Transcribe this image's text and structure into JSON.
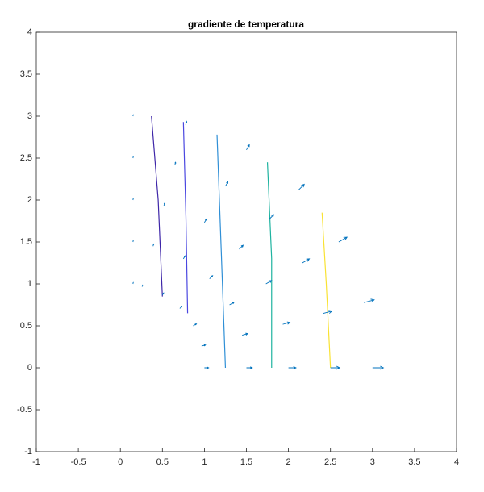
{
  "chart_data": {
    "type": "quiver",
    "title": "gradiente de temperatura",
    "xlim": [
      -1,
      4
    ],
    "ylim": [
      -1,
      4
    ],
    "xticks": [
      -1,
      -0.5,
      0,
      0.5,
      1,
      1.5,
      2,
      2.5,
      3,
      3.5,
      4
    ],
    "yticks": [
      -1,
      -0.5,
      0,
      0.5,
      1,
      1.5,
      2,
      2.5,
      3,
      3.5,
      4
    ],
    "arrows": {
      "color": "#0072bd",
      "x": [
        1,
        1.5,
        2,
        2.5,
        3,
        0.966,
        1.449,
        1.932,
        2.415,
        2.898,
        0.866,
        1.299,
        1.732,
        2.165,
        2.598,
        0.707,
        1.061,
        1.414,
        1.768,
        2.121,
        0.5,
        0.75,
        1,
        1.25,
        1.5,
        0.259,
        0.389,
        0.518,
        0.648,
        0.777,
        0.15,
        0.15,
        0.15,
        0.15,
        0.15
      ],
      "y": [
        0,
        0,
        0,
        0,
        0,
        0.259,
        0.389,
        0.518,
        0.648,
        0.777,
        0.5,
        0.75,
        1,
        1.25,
        1.5,
        0.707,
        1.061,
        1.414,
        1.768,
        2.121,
        0.866,
        1.299,
        1.732,
        2.165,
        2.598,
        0.966,
        1.449,
        1.932,
        2.415,
        2.898,
        1,
        1.5,
        2,
        2.5,
        3
      ],
      "u": [
        0.05,
        0.07,
        0.09,
        0.11,
        0.13,
        0.047,
        0.066,
        0.084,
        0.103,
        0.122,
        0.039,
        0.054,
        0.068,
        0.084,
        0.099,
        0.027,
        0.037,
        0.047,
        0.057,
        0.067,
        0.015,
        0.02,
        0.025,
        0.03,
        0.035,
        0.005,
        0.007,
        0.008,
        0.009,
        0.011,
        0.003,
        0.003,
        0.003,
        0.003,
        0.003
      ],
      "v": [
        0,
        0,
        0,
        0,
        0,
        0.013,
        0.018,
        0.023,
        0.028,
        0.033,
        0.023,
        0.031,
        0.04,
        0.049,
        0.057,
        0.027,
        0.037,
        0.047,
        0.057,
        0.067,
        0.026,
        0.035,
        0.043,
        0.052,
        0.061,
        0.019,
        0.025,
        0.03,
        0.035,
        0.04,
        0.016,
        0.016,
        0.016,
        0.016,
        0.016
      ]
    },
    "contours": [
      {
        "color": "#3e26a8",
        "x": [
          0.37,
          0.45,
          0.5
        ],
        "y": [
          3.0,
          2.0,
          0.85
        ]
      },
      {
        "color": "#4a47e0",
        "x": [
          0.75,
          0.78,
          0.8
        ],
        "y": [
          2.93,
          1.8,
          0.65
        ]
      },
      {
        "color": "#2f8fd6",
        "x": [
          1.15,
          1.2,
          1.25
        ],
        "y": [
          2.78,
          1.4,
          0
        ]
      },
      {
        "color": "#1fb3a0",
        "x": [
          1.75,
          1.8,
          1.8
        ],
        "y": [
          2.45,
          1.3,
          0
        ]
      },
      {
        "color": "#f9e233",
        "x": [
          2.4,
          2.45,
          2.5
        ],
        "y": [
          1.85,
          1.0,
          0
        ]
      }
    ]
  }
}
